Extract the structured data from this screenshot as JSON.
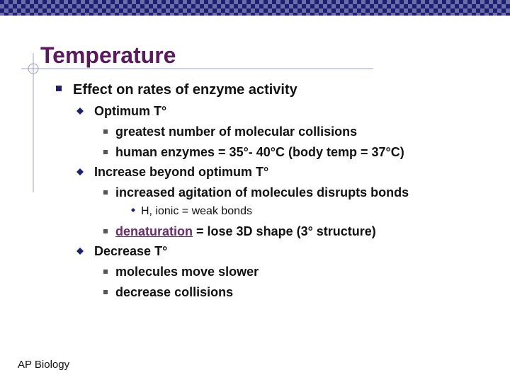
{
  "slide": {
    "title": "Temperature",
    "footer": "AP Biology",
    "bullets": [
      {
        "text": "Effect on rates of enzyme activity"
      },
      {
        "text": "Optimum T°"
      },
      {
        "text": "greatest number of molecular collisions"
      },
      {
        "text": "human enzymes = 35°- 40°C (body temp = 37°C)"
      },
      {
        "text": "Increase beyond optimum T°"
      },
      {
        "text": "increased agitation of molecules disrupts bonds"
      },
      {
        "text": "H, ionic = weak bonds"
      },
      {
        "link": "denaturation",
        "text": " = lose 3D shape (3° structure)"
      },
      {
        "text": "Decrease T°"
      },
      {
        "text": "molecules move slower"
      },
      {
        "text": "decrease collisions"
      }
    ]
  }
}
